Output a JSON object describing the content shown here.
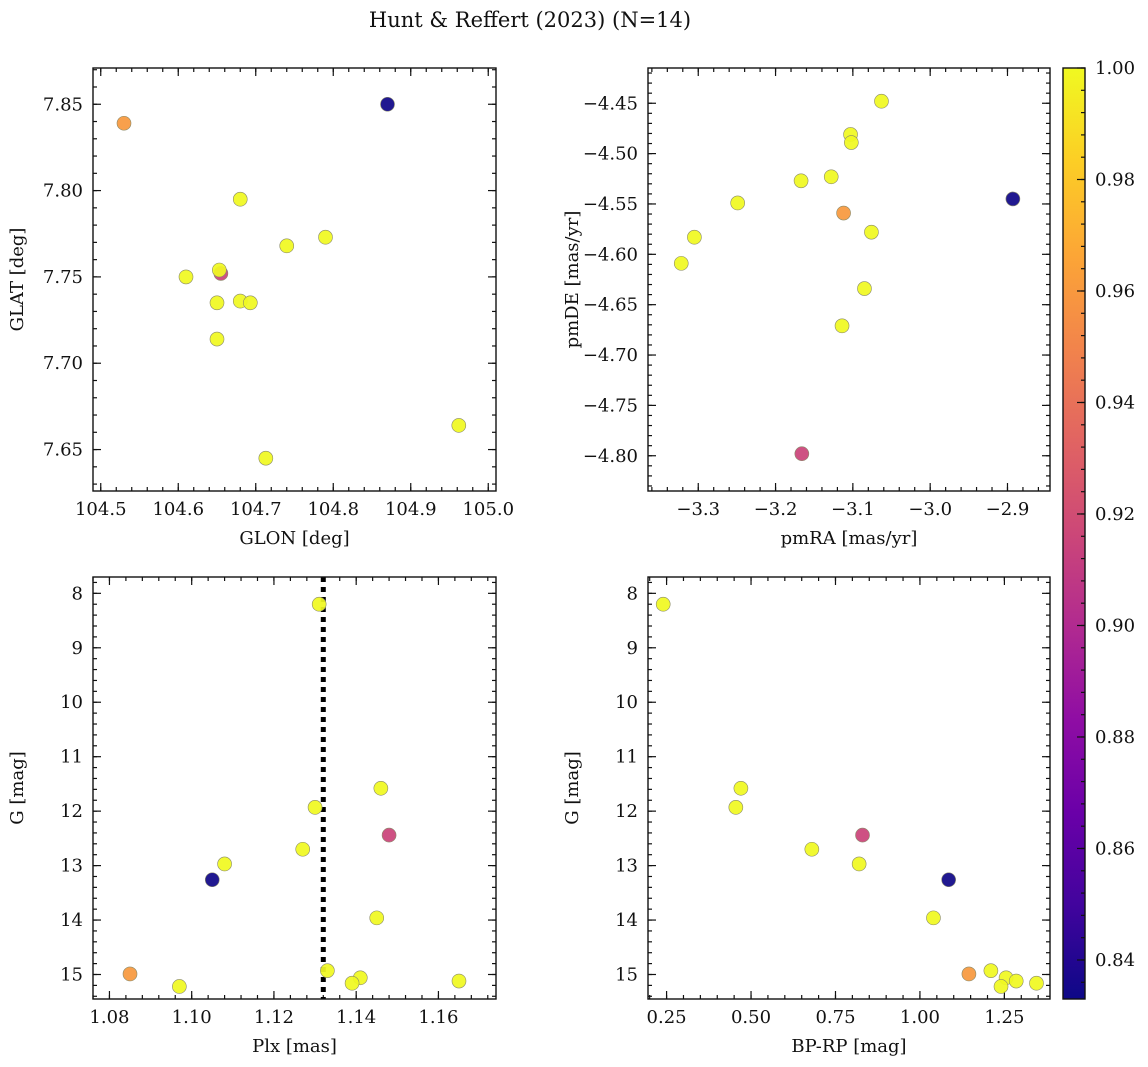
{
  "title": "Hunt & Reffert (2023) (N=14)",
  "colorbar": {
    "colormap": "plasma",
    "range": [
      0.833,
      1.0
    ],
    "ticks": [
      0.84,
      0.86,
      0.88,
      0.9,
      0.92,
      0.94,
      0.96,
      0.98,
      1.0
    ],
    "tick_labels": [
      "0.84",
      "0.86",
      "0.88",
      "0.90",
      "0.92",
      "0.94",
      "0.96",
      "0.98",
      "1.00"
    ]
  },
  "chart_data": [
    {
      "type": "scatter",
      "xlabel": "GLON [deg]",
      "ylabel": "GLAT [deg]",
      "xlim": [
        104.49,
        105.01
      ],
      "ylim": [
        7.626,
        7.871
      ],
      "y_inverted": false,
      "xticks": [
        104.5,
        104.6,
        104.7,
        104.8,
        104.9,
        105.0
      ],
      "xtick_labels": [
        "104.5",
        "104.6",
        "104.7",
        "104.8",
        "104.9",
        "105.0"
      ],
      "xminor": 0.02,
      "yticks": [
        7.65,
        7.7,
        7.75,
        7.8,
        7.85
      ],
      "ytick_labels": [
        "7.65",
        "7.70",
        "7.75",
        "7.80",
        "7.85"
      ],
      "yminor": 0.01,
      "vline": null,
      "x": [
        104.87,
        104.53,
        104.68,
        104.79,
        104.74,
        104.61,
        104.655,
        104.653,
        104.65,
        104.68,
        104.693,
        104.65,
        104.962,
        104.713
      ],
      "y": [
        7.85,
        7.839,
        7.795,
        7.773,
        7.768,
        7.75,
        7.752,
        7.754,
        7.735,
        7.736,
        7.735,
        7.714,
        7.664,
        7.645
      ],
      "c": [
        0.834,
        0.96,
        1.0,
        1.0,
        1.0,
        1.0,
        0.915,
        1.0,
        1.0,
        1.0,
        1.0,
        1.0,
        1.0,
        1.0
      ]
    },
    {
      "type": "scatter",
      "xlabel": "pmRA [mas/yr]",
      "ylabel": "pmDE [mas/yr]",
      "xlim": [
        -3.365,
        -2.845
      ],
      "ylim": [
        -4.835,
        -4.415
      ],
      "y_inverted": false,
      "xticks": [
        -3.3,
        -3.2,
        -3.1,
        -3.0,
        -2.9
      ],
      "xtick_labels": [
        "−3.3",
        "−3.2",
        "−3.1",
        "−3.0",
        "−2.9"
      ],
      "xminor": 0.02,
      "yticks": [
        -4.8,
        -4.75,
        -4.7,
        -4.65,
        -4.6,
        -4.55,
        -4.5,
        -4.45
      ],
      "ytick_labels": [
        "−4.80",
        "−4.75",
        "−4.70",
        "−4.65",
        "−4.60",
        "−4.55",
        "−4.50",
        "−4.45"
      ],
      "yminor": 0.01,
      "vline": null,
      "x": [
        -3.063,
        -3.103,
        -3.102,
        -3.128,
        -3.167,
        -3.249,
        -2.893,
        -3.112,
        -3.305,
        -3.076,
        -3.322,
        -3.085,
        -3.114,
        -3.166
      ],
      "y": [
        -4.448,
        -4.481,
        -4.489,
        -4.523,
        -4.527,
        -4.549,
        -4.545,
        -4.559,
        -4.583,
        -4.578,
        -4.609,
        -4.634,
        -4.671,
        -4.798
      ],
      "c": [
        1.0,
        1.0,
        1.0,
        1.0,
        1.0,
        1.0,
        0.834,
        0.96,
        1.0,
        1.0,
        1.0,
        1.0,
        1.0,
        0.915
      ]
    },
    {
      "type": "scatter",
      "xlabel": "Plx [mas]",
      "ylabel": "G [mag]",
      "xlim": [
        1.076,
        1.174
      ],
      "ylim": [
        15.45,
        7.7
      ],
      "y_inverted": true,
      "xticks": [
        1.08,
        1.1,
        1.12,
        1.14,
        1.16
      ],
      "xtick_labels": [
        "1.08",
        "1.10",
        "1.12",
        "1.14",
        "1.16"
      ],
      "xminor": 0.004,
      "yticks": [
        8,
        9,
        10,
        11,
        12,
        13,
        14,
        15
      ],
      "ytick_labels": [
        "8",
        "9",
        "10",
        "11",
        "12",
        "13",
        "14",
        "15"
      ],
      "yminor": 0.2,
      "vline": 1.132,
      "x": [
        1.131,
        1.146,
        1.13,
        1.148,
        1.127,
        1.108,
        1.105,
        1.145,
        1.085,
        1.097,
        1.133,
        1.141,
        1.139,
        1.165
      ],
      "y": [
        8.2,
        11.58,
        11.93,
        12.44,
        12.7,
        12.97,
        13.26,
        13.96,
        14.99,
        15.22,
        14.93,
        15.06,
        15.16,
        15.12
      ],
      "c": [
        1.0,
        1.0,
        1.0,
        0.915,
        1.0,
        1.0,
        0.834,
        1.0,
        0.96,
        1.0,
        1.0,
        1.0,
        1.0,
        1.0
      ]
    },
    {
      "type": "scatter",
      "xlabel": "BP-RP [mag]",
      "ylabel": "G [mag]",
      "xlim": [
        0.195,
        1.385
      ],
      "ylim": [
        15.45,
        7.7
      ],
      "y_inverted": true,
      "xticks": [
        0.25,
        0.5,
        0.75,
        1.0,
        1.25
      ],
      "xtick_labels": [
        "0.25",
        "0.50",
        "0.75",
        "1.00",
        "1.25"
      ],
      "xminor": 0.05,
      "yticks": [
        8,
        9,
        10,
        11,
        12,
        13,
        14,
        15
      ],
      "ytick_labels": [
        "8",
        "9",
        "10",
        "11",
        "12",
        "13",
        "14",
        "15"
      ],
      "yminor": 0.2,
      "vline": null,
      "x": [
        0.24,
        0.47,
        0.455,
        0.83,
        0.68,
        0.82,
        1.085,
        1.04,
        1.145,
        1.21,
        1.255,
        1.285,
        1.24,
        1.345
      ],
      "y": [
        8.2,
        11.58,
        11.93,
        12.44,
        12.7,
        12.97,
        13.26,
        13.96,
        14.99,
        14.93,
        15.06,
        15.12,
        15.22,
        15.16
      ],
      "c": [
        1.0,
        1.0,
        1.0,
        0.915,
        1.0,
        1.0,
        0.834,
        1.0,
        0.96,
        1.0,
        1.0,
        1.0,
        1.0,
        1.0
      ]
    }
  ]
}
